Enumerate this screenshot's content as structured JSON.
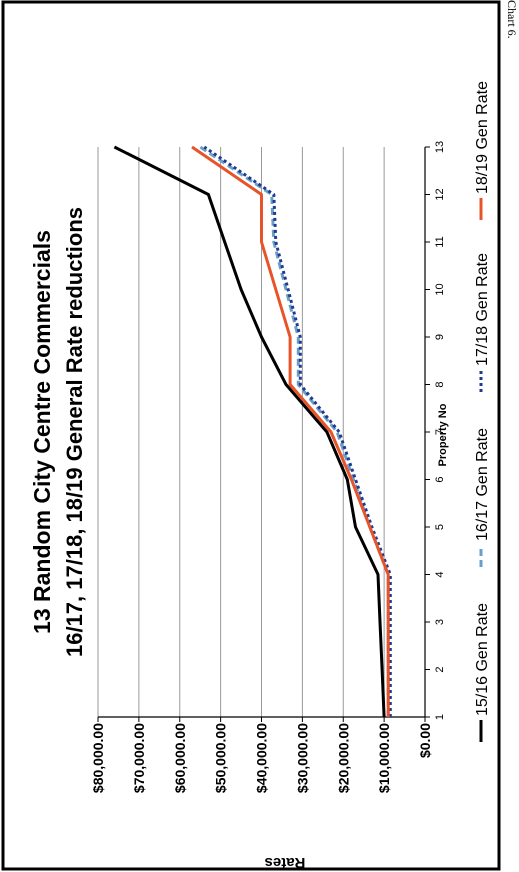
{
  "page": {
    "corner_label": "Chart 6."
  },
  "chart_data": {
    "type": "line",
    "title": "13 Random City Centre Commercials",
    "subtitle": "16/17, 17/18, 18/19 General Rate reductions",
    "xlabel": "Property No",
    "ylabel": "Rates",
    "x": [
      1,
      2,
      3,
      4,
      5,
      6,
      7,
      8,
      9,
      10,
      11,
      12,
      13
    ],
    "x_ticks": [
      "1",
      "2",
      "3",
      "4",
      "5",
      "6",
      "7",
      "8",
      "9",
      "10",
      "11",
      "12",
      "13"
    ],
    "ylim": [
      0,
      80000
    ],
    "y_ticks": [
      "$0.00",
      "$10,000.00",
      "$20,000.00",
      "$30,000.00",
      "$40,000.00",
      "$50,000.00",
      "$60,000.00",
      "$70,000.00",
      "$80,000.00"
    ],
    "grid": true,
    "legend_position": "bottom",
    "series": [
      {
        "name": "15/16 Gen Rate",
        "color": "#000000",
        "style": "solid",
        "values": [
          10000,
          10500,
          11000,
          11500,
          17000,
          19000,
          24000,
          34000,
          40000,
          45000,
          49000,
          53000,
          76000
        ]
      },
      {
        "name": "16/17 Gen Rate",
        "color": "#6aa0c8",
        "style": "dashed",
        "values": [
          9000,
          9000,
          9000,
          9000,
          13500,
          17500,
          21500,
          31000,
          31000,
          34000,
          37000,
          37500,
          55000
        ]
      },
      {
        "name": "17/18 Gen Rate",
        "color": "#1f3a93",
        "style": "dotted",
        "values": [
          8500,
          8500,
          8500,
          8500,
          13000,
          17000,
          21000,
          30500,
          30500,
          33500,
          36500,
          37000,
          54000
        ]
      },
      {
        "name": "18/19 Gen Rate",
        "color": "#e8542a",
        "style": "solid",
        "values": [
          9000,
          9000,
          9000,
          9000,
          13500,
          18000,
          23000,
          33000,
          33000,
          36500,
          40000,
          40000,
          57000
        ]
      }
    ]
  }
}
